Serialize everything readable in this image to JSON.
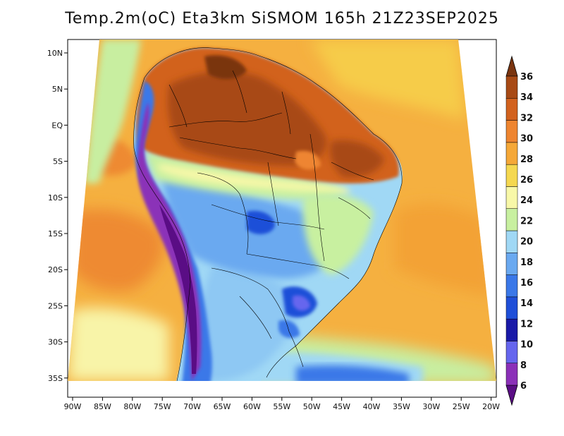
{
  "title": "Temp.2m(oC) Eta3km SiSMOM 165h 21Z23SEP2025",
  "map": {
    "variable": "2 m air temperature",
    "units": "oC",
    "model": "Eta3km",
    "region": "South America"
  },
  "axes": {
    "lat_labels": [
      "10N",
      "5N",
      "EQ",
      "5S",
      "10S",
      "15S",
      "20S",
      "25S",
      "30S",
      "35S"
    ],
    "lon_labels": [
      "90W",
      "85W",
      "80W",
      "75W",
      "70W",
      "65W",
      "60W",
      "55W",
      "50W",
      "45W",
      "40W",
      "35W",
      "30W",
      "25W",
      "20W"
    ]
  },
  "colorbar": {
    "labels": [
      "6",
      "8",
      "10",
      "12",
      "14",
      "16",
      "18",
      "20",
      "22",
      "24",
      "26",
      "28",
      "30",
      "32",
      "34",
      "36"
    ],
    "colors": [
      "#5a0d85",
      "#8b30b8",
      "#6666ee",
      "#1a1aa8",
      "#1f4fd8",
      "#3a78e8",
      "#6aa9f0",
      "#a0d8f5",
      "#c8f0a0",
      "#f8f8a8",
      "#f5d850",
      "#f5a838",
      "#ee8530",
      "#d2621e",
      "#a84a15",
      "#7a3510"
    ]
  }
}
